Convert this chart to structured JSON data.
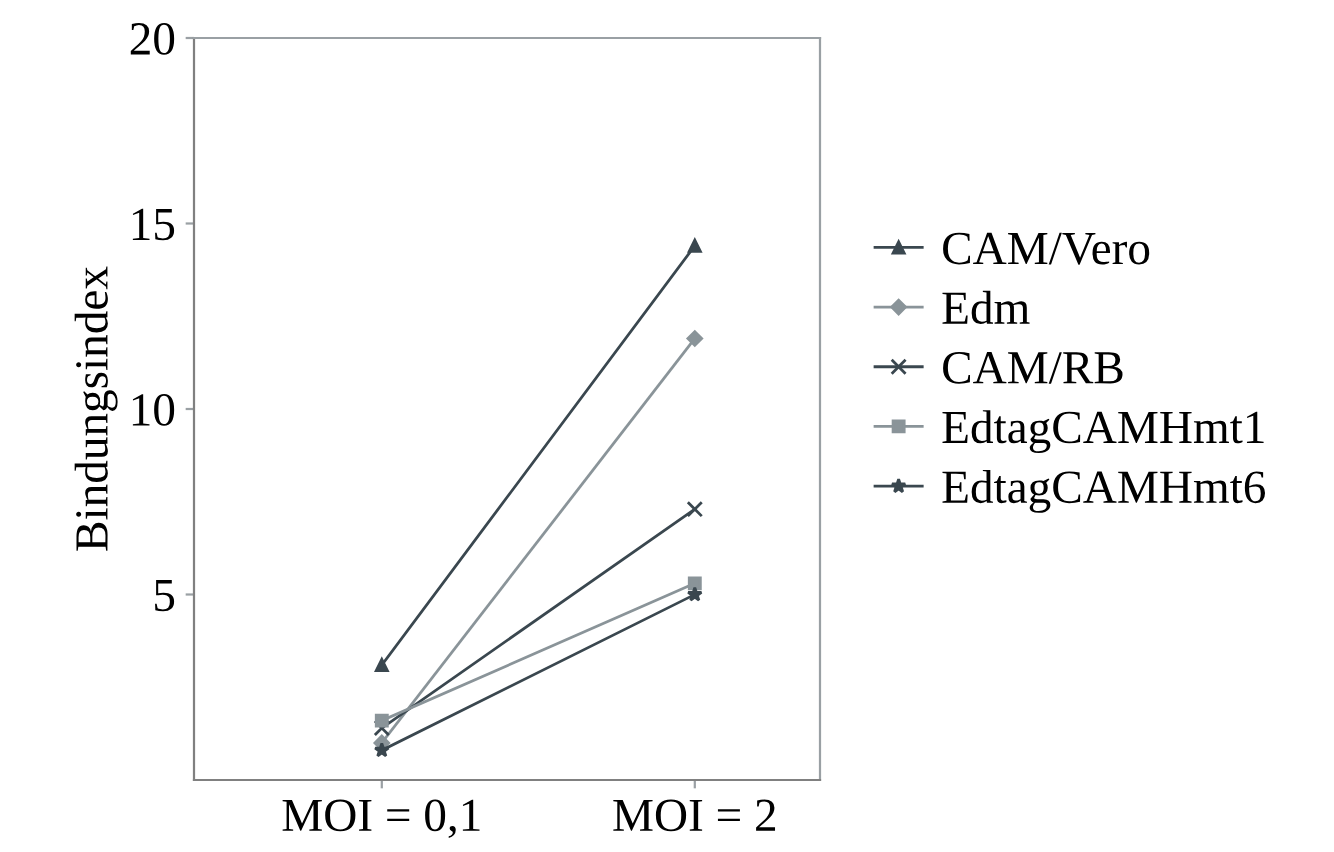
{
  "chart_data": {
    "type": "line",
    "ylabel": "Bindungsindex",
    "categories": [
      "MOI = 0,1",
      "MOI = 2"
    ],
    "ylim": [
      0,
      20
    ],
    "yticks": [
      5,
      10,
      15,
      20
    ],
    "grid": false,
    "legend": "right",
    "series": [
      {
        "name": "CAM/Vero",
        "color": "#3a474f",
        "marker": "triangle",
        "values": [
          3.1,
          14.4
        ]
      },
      {
        "name": "Edm",
        "color": "#8a9499",
        "marker": "diamond",
        "values": [
          1.0,
          11.9
        ]
      },
      {
        "name": "CAM/RB",
        "color": "#3a474f",
        "marker": "cross",
        "values": [
          1.4,
          7.3
        ]
      },
      {
        "name": "EdtagCAMHmt1",
        "color": "#8a9499",
        "marker": "square",
        "values": [
          1.6,
          5.3
        ]
      },
      {
        "name": "EdtagCAMHmt6",
        "color": "#3a474f",
        "marker": "star",
        "values": [
          0.8,
          5.0
        ]
      }
    ]
  }
}
